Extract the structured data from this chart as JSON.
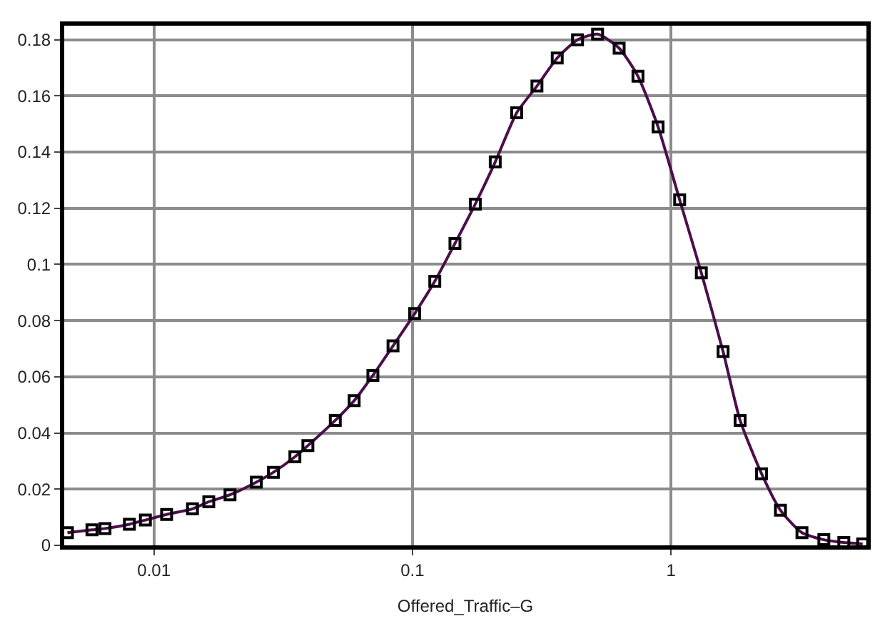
{
  "chart_data": {
    "type": "line",
    "xlabel": "Offered_Traffic–G",
    "x": [
      0.00463,
      0.00576,
      0.00647,
      0.00804,
      0.00927,
      0.0112,
      0.0141,
      0.0163,
      0.0197,
      0.0249,
      0.029,
      0.0351,
      0.0394,
      0.0503,
      0.0595,
      0.0703,
      0.0841,
      0.102,
      0.122,
      0.146,
      0.175,
      0.209,
      0.253,
      0.303,
      0.363,
      0.435,
      0.52,
      0.63,
      0.745,
      0.891,
      1.08,
      1.31,
      1.59,
      1.85,
      2.24,
      2.65,
      3.21,
      3.9,
      4.66,
      5.51
    ],
    "series": [
      {
        "color": "#4b0f4b",
        "values": [
          0.0045,
          0.0055,
          0.006,
          0.0075,
          0.009,
          0.011,
          0.013,
          0.0155,
          0.018,
          0.0225,
          0.026,
          0.0315,
          0.0355,
          0.0445,
          0.0515,
          0.0605,
          0.071,
          0.0825,
          0.094,
          0.1075,
          0.1215,
          0.1365,
          0.154,
          0.1635,
          0.1735,
          0.18,
          0.182,
          0.177,
          0.167,
          0.149,
          0.123,
          0.097,
          0.069,
          0.0445,
          0.0255,
          0.0125,
          0.0045,
          0.002,
          0.001,
          0.0005
        ]
      }
    ],
    "log": "x",
    "xlim": [
      0.0045,
      5.7
    ],
    "xticks": [
      0.01,
      0.1,
      1
    ],
    "ylim": [
      0,
      0.185
    ],
    "yticks": [
      0,
      0.02,
      0.04,
      0.06,
      0.08,
      0.1,
      0.12,
      0.14,
      0.16,
      0.18
    ],
    "grid": true,
    "marker": "square",
    "line_style": "solid"
  }
}
